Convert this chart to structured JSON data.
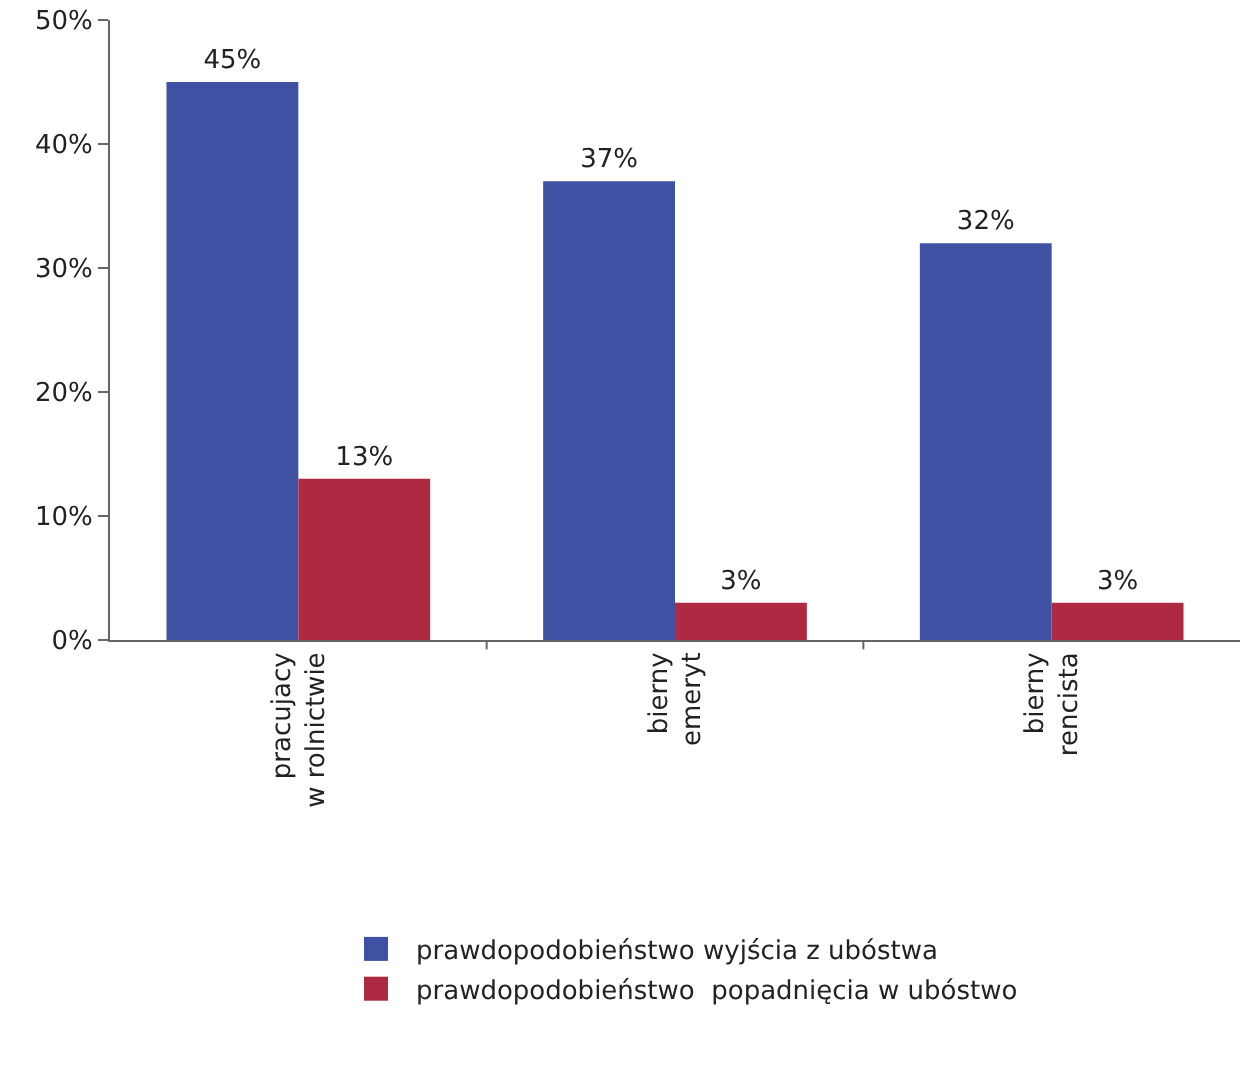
{
  "chart_data": {
    "type": "bar",
    "categories": [
      "pracujacy\nw rolnictwie",
      "bierny\nemeryt",
      "bierny\nrencista"
    ],
    "series": [
      {
        "name": "prawdopodobieństwo wyjścia z ubóstwa",
        "color": "#3f51a3",
        "values": [
          45,
          37,
          32
        ],
        "value_labels": [
          "45%",
          "37%",
          "32%"
        ]
      },
      {
        "name": "prawdopodobieństwo  popadnięcia w ubóstwo",
        "color": "#ae2a43",
        "values": [
          13,
          3,
          3
        ],
        "value_labels": [
          "13%",
          "3%",
          "3%"
        ]
      }
    ],
    "ylim": [
      0,
      50
    ],
    "yticks": [
      {
        "value": 0,
        "label": "0%"
      },
      {
        "value": 10,
        "label": "10%"
      },
      {
        "value": 20,
        "label": "20%"
      },
      {
        "value": 30,
        "label": "30%"
      },
      {
        "value": 40,
        "label": "40%"
      },
      {
        "value": 50,
        "label": "50%"
      }
    ],
    "grid": false,
    "legend": "bottom"
  }
}
